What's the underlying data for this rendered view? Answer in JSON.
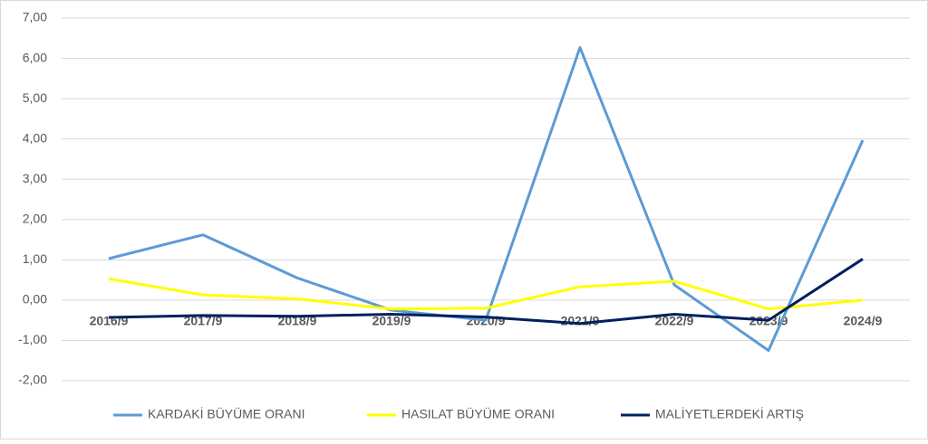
{
  "chart_data": {
    "type": "line",
    "categories": [
      "2016/9",
      "2017/9",
      "2018/9",
      "2019/9",
      "2020/9",
      "2021/9",
      "2022/9",
      "2023/9",
      "2024/9"
    ],
    "series": [
      {
        "name": "KARDAKİ BÜYÜME ORANI",
        "color": "#5b9bd5",
        "values": [
          1.03,
          1.62,
          0.55,
          -0.25,
          -0.5,
          6.27,
          0.38,
          -1.25,
          3.97
        ]
      },
      {
        "name": "HASILAT BÜYÜME ORANI",
        "color": "#ffff00",
        "values": [
          0.53,
          0.13,
          0.03,
          -0.22,
          -0.2,
          0.33,
          0.47,
          -0.22,
          0.0
        ]
      },
      {
        "name": "MALİYETLERDEKİ ARTIŞ",
        "color": "#002060",
        "values": [
          -0.43,
          -0.38,
          -0.4,
          -0.35,
          -0.42,
          -0.58,
          -0.35,
          -0.5,
          1.02
        ]
      }
    ],
    "ylim": [
      -2,
      7
    ],
    "yticks": [
      {
        "value": -2,
        "label": "-2,00"
      },
      {
        "value": -1,
        "label": "-1,00"
      },
      {
        "value": 0,
        "label": "0,00"
      },
      {
        "value": 1,
        "label": "1,00"
      },
      {
        "value": 2,
        "label": "2,00"
      },
      {
        "value": 3,
        "label": "3,00"
      },
      {
        "value": 4,
        "label": "4,00"
      },
      {
        "value": 5,
        "label": "5,00"
      },
      {
        "value": 6,
        "label": "6,00"
      },
      {
        "value": 7,
        "label": "7,00"
      }
    ],
    "grid": true,
    "legend": "bottom"
  }
}
